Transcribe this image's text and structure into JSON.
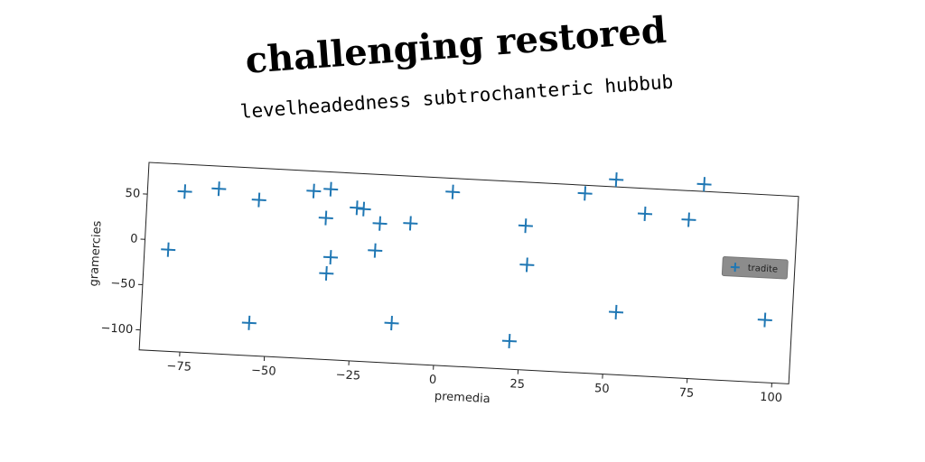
{
  "headline": "challenging restored",
  "chart_data": {
    "type": "scatter",
    "title": "levelheadedness subtrochanteric hubbub",
    "xlabel": "premedia",
    "ylabel": "gramercies",
    "xlim": [
      -87,
      105
    ],
    "ylim": [
      -122,
      85
    ],
    "xticks": [
      -75,
      -50,
      -25,
      0,
      25,
      50,
      75,
      100
    ],
    "yticks": [
      -100,
      -50,
      0,
      50
    ],
    "xtick_labels": [
      "−75",
      "−50",
      "−25",
      "0",
      "25",
      "50",
      "75",
      "100"
    ],
    "ytick_labels": [
      "−100",
      "−50",
      "0",
      "50"
    ],
    "grid": false,
    "legend_position": "right",
    "marker": "plus",
    "color": "#1f77b4",
    "series": [
      {
        "name": "tradite",
        "x": [
          -80,
          -76,
          -66,
          -54,
          -38,
          -33,
          -34,
          -32,
          -33,
          -25,
          -23,
          -18,
          -19,
          -9,
          3,
          -13,
          -55,
          25,
          26,
          22,
          42,
          51,
          60,
          73,
          77,
          53,
          97
        ],
        "y": [
          -10,
          55,
          60,
          50,
          63,
          66,
          34,
          -9,
          -27,
          47,
          46,
          31,
          1,
          33,
          70,
          -78,
          -86,
          37,
          -6,
          -91,
          76,
          93,
          57,
          53,
          93,
          -53,
          -53
        ]
      }
    ]
  }
}
